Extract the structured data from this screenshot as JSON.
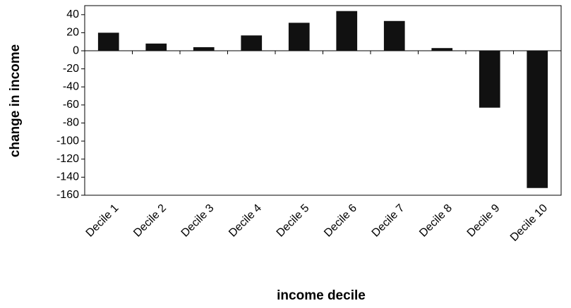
{
  "chart_data": {
    "type": "bar",
    "x_label": "income decile",
    "y_label": "change in income",
    "categories": [
      "Decile 1",
      "Decile 2",
      "Decile 3",
      "Decile 4",
      "Decile 5",
      "Decile 6",
      "Decile 7",
      "Decile 8",
      "Decile 9",
      "Decile 10"
    ],
    "values": [
      20,
      8,
      4,
      17,
      31,
      44,
      33,
      3,
      -63,
      -152
    ],
    "color": "#111111",
    "ylim": [
      -160,
      50
    ],
    "yticks": [
      -160,
      -140,
      -120,
      -100,
      -80,
      -60,
      -40,
      -20,
      0,
      20,
      40
    ],
    "grid": false
  }
}
